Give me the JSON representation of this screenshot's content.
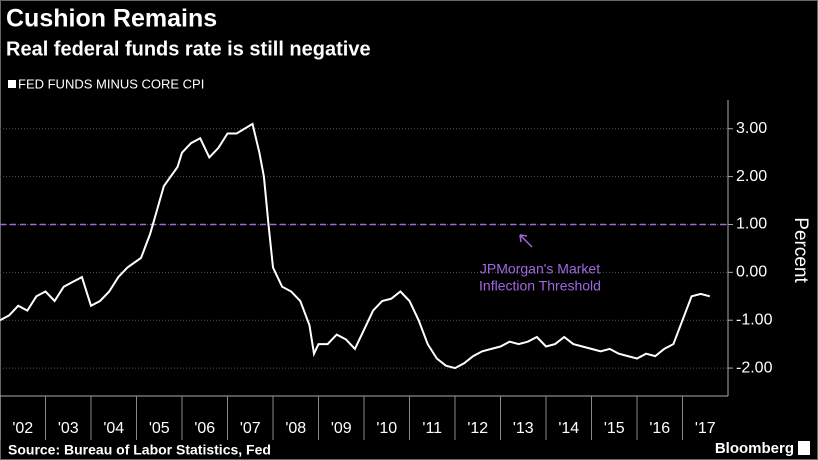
{
  "chart_data": {
    "type": "line",
    "title": "Cushion Remains",
    "subtitle": "Real federal funds rate is still negative",
    "y_axis_label": "Percent",
    "source": "Source: Bureau of Labor Statistics, Fed",
    "brand": "Bloomberg",
    "x": [
      2002.0,
      2002.2,
      2002.4,
      2002.6,
      2002.8,
      2003.0,
      2003.2,
      2003.4,
      2003.6,
      2003.8,
      2004.0,
      2004.2,
      2004.4,
      2004.6,
      2004.8,
      2005.1,
      2005.3,
      2005.45,
      2005.6,
      2005.9,
      2006.0,
      2006.2,
      2006.4,
      2006.6,
      2006.8,
      2007.0,
      2007.2,
      2007.55,
      2007.7,
      2007.8,
      2007.9,
      2008.0,
      2008.2,
      2008.4,
      2008.6,
      2008.8,
      2008.9,
      2009.0,
      2009.2,
      2009.4,
      2009.6,
      2009.8,
      2010.0,
      2010.2,
      2010.4,
      2010.6,
      2010.8,
      2011.0,
      2011.2,
      2011.4,
      2011.6,
      2011.8,
      2012.0,
      2012.2,
      2012.4,
      2012.6,
      2012.8,
      2013.0,
      2013.2,
      2013.4,
      2013.6,
      2013.8,
      2014.0,
      2014.2,
      2014.4,
      2014.6,
      2014.8,
      2015.0,
      2015.2,
      2015.4,
      2015.6,
      2015.8,
      2016.0,
      2016.2,
      2016.4,
      2016.6,
      2016.8,
      2017.0,
      2017.2,
      2017.4,
      2017.6
    ],
    "series": [
      {
        "name": "FED FUNDS MINUS CORE CPI",
        "color": "#ffffff",
        "values": [
          -1.0,
          -0.9,
          -0.7,
          -0.8,
          -0.5,
          -0.4,
          -0.6,
          -0.3,
          -0.2,
          -0.1,
          -0.7,
          -0.6,
          -0.4,
          -0.1,
          0.1,
          0.3,
          0.8,
          1.3,
          1.8,
          2.2,
          2.5,
          2.7,
          2.8,
          2.4,
          2.6,
          2.9,
          2.9,
          3.1,
          2.5,
          2.0,
          1.0,
          0.1,
          -0.3,
          -0.4,
          -0.6,
          -1.1,
          -1.7,
          -1.5,
          -1.5,
          -1.3,
          -1.4,
          -1.6,
          -1.2,
          -0.8,
          -0.6,
          -0.55,
          -0.4,
          -0.6,
          -1.0,
          -1.5,
          -1.8,
          -1.95,
          -2.0,
          -1.9,
          -1.75,
          -1.65,
          -1.6,
          -1.55,
          -1.45,
          -1.5,
          -1.45,
          -1.35,
          -1.55,
          -1.5,
          -1.35,
          -1.5,
          -1.55,
          -1.6,
          -1.65,
          -1.6,
          -1.7,
          -1.75,
          -1.8,
          -1.7,
          -1.75,
          -1.6,
          -1.5,
          -1.0,
          -0.5,
          -0.45,
          -0.5
        ]
      }
    ],
    "threshold": {
      "value": 1,
      "color": "#a066e0",
      "label": [
        "JPMorgan's Market",
        "Inflection Threshold"
      ]
    },
    "xlim": [
      2002,
      2018
    ],
    "xticks": [
      {
        "value": 2002,
        "label": "'02"
      },
      {
        "value": 2003,
        "label": "'03"
      },
      {
        "value": 2004,
        "label": "'04"
      },
      {
        "value": 2005,
        "label": "'05"
      },
      {
        "value": 2006,
        "label": "'06"
      },
      {
        "value": 2007,
        "label": "'07"
      },
      {
        "value": 2008,
        "label": "'08"
      },
      {
        "value": 2009,
        "label": "'09"
      },
      {
        "value": 2010,
        "label": "'10"
      },
      {
        "value": 2011,
        "label": "'11"
      },
      {
        "value": 2012,
        "label": "'12"
      },
      {
        "value": 2013,
        "label": "'13"
      },
      {
        "value": 2014,
        "label": "'14"
      },
      {
        "value": 2015,
        "label": "'15"
      },
      {
        "value": 2016,
        "label": "'16"
      },
      {
        "value": 2017,
        "label": "'17"
      }
    ],
    "ylim": [
      -2.5,
      3.6
    ],
    "yticks": [
      {
        "value": -2,
        "label": "-2.00"
      },
      {
        "value": -1,
        "label": "-1.00"
      },
      {
        "value": 0,
        "label": "0.00"
      },
      {
        "value": 1,
        "label": "1.00"
      },
      {
        "value": 2,
        "label": "2.00"
      },
      {
        "value": 3,
        "label": "3.00"
      }
    ],
    "grid": true
  }
}
